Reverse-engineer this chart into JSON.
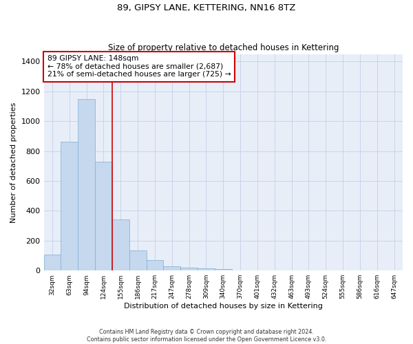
{
  "title": "89, GIPSY LANE, KETTERING, NN16 8TZ",
  "subtitle": "Size of property relative to detached houses in Kettering",
  "xlabel": "Distribution of detached houses by size in Kettering",
  "ylabel": "Number of detached properties",
  "categories": [
    "32sqm",
    "63sqm",
    "94sqm",
    "124sqm",
    "155sqm",
    "186sqm",
    "217sqm",
    "247sqm",
    "278sqm",
    "309sqm",
    "340sqm",
    "370sqm",
    "401sqm",
    "432sqm",
    "463sqm",
    "493sqm",
    "524sqm",
    "555sqm",
    "586sqm",
    "616sqm",
    "647sqm"
  ],
  "values": [
    105,
    862,
    1148,
    730,
    340,
    135,
    68,
    30,
    20,
    14,
    10,
    0,
    0,
    0,
    0,
    0,
    0,
    0,
    0,
    0,
    0
  ],
  "bar_color": "#c5d8ed",
  "bar_edgecolor": "#7bafd4",
  "property_label": "89 GIPSY LANE: 148sqm",
  "annotation_line1": "← 78% of detached houses are smaller (2,687)",
  "annotation_line2": "21% of semi-detached houses are larger (725) →",
  "annotation_box_color": "#ffffff",
  "annotation_box_edgecolor": "#cc0000",
  "vline_color": "#cc0000",
  "ylim": [
    0,
    1450
  ],
  "yticks": [
    0,
    200,
    400,
    600,
    800,
    1000,
    1200,
    1400
  ],
  "grid_color": "#c8d4e8",
  "bg_color": "#e8eef8",
  "footnote1": "Contains HM Land Registry data © Crown copyright and database right 2024.",
  "footnote2": "Contains public sector information licensed under the Open Government Licence v3.0."
}
